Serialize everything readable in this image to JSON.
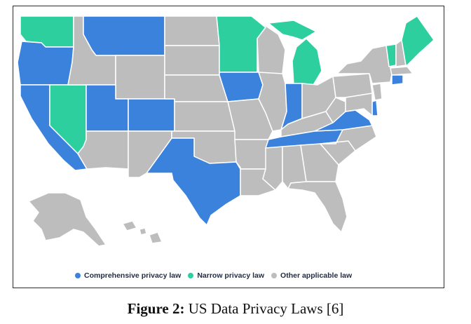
{
  "legend": {
    "items": [
      {
        "label": "Comprehensive privacy law",
        "color": "#3b82dc"
      },
      {
        "label": "Narrow privacy law",
        "color": "#2dcf9f"
      },
      {
        "label": "Other applicable law",
        "color": "#bdbdbd"
      }
    ]
  },
  "caption": {
    "label": "Figure 2:",
    "text": " US Data Privacy Laws [6]"
  },
  "colors": {
    "comprehensive": "#3b82dc",
    "narrow": "#2dcf9f",
    "other": "#bdbdbd",
    "border": "#ffffff"
  },
  "map": {
    "states": [
      {
        "name": "Washington",
        "category": "narrow"
      },
      {
        "name": "Oregon",
        "category": "comprehensive"
      },
      {
        "name": "California",
        "category": "comprehensive"
      },
      {
        "name": "Nevada",
        "category": "narrow"
      },
      {
        "name": "Idaho",
        "category": "other"
      },
      {
        "name": "Montana",
        "category": "comprehensive"
      },
      {
        "name": "Wyoming",
        "category": "other"
      },
      {
        "name": "Utah",
        "category": "comprehensive"
      },
      {
        "name": "Colorado",
        "category": "comprehensive"
      },
      {
        "name": "Arizona",
        "category": "other"
      },
      {
        "name": "New Mexico",
        "category": "other"
      },
      {
        "name": "North Dakota",
        "category": "other"
      },
      {
        "name": "South Dakota",
        "category": "other"
      },
      {
        "name": "Nebraska",
        "category": "other"
      },
      {
        "name": "Kansas",
        "category": "other"
      },
      {
        "name": "Oklahoma",
        "category": "other"
      },
      {
        "name": "Texas",
        "category": "comprehensive"
      },
      {
        "name": "Minnesota",
        "category": "narrow"
      },
      {
        "name": "Iowa",
        "category": "comprehensive"
      },
      {
        "name": "Missouri",
        "category": "other"
      },
      {
        "name": "Arkansas",
        "category": "other"
      },
      {
        "name": "Louisiana",
        "category": "other"
      },
      {
        "name": "Wisconsin",
        "category": "other"
      },
      {
        "name": "Illinois",
        "category": "other"
      },
      {
        "name": "Michigan",
        "category": "narrow"
      },
      {
        "name": "Indiana",
        "category": "comprehensive"
      },
      {
        "name": "Ohio",
        "category": "other"
      },
      {
        "name": "Kentucky",
        "category": "other"
      },
      {
        "name": "Tennessee",
        "category": "comprehensive"
      },
      {
        "name": "Mississippi",
        "category": "other"
      },
      {
        "name": "Alabama",
        "category": "other"
      },
      {
        "name": "Georgia",
        "category": "other"
      },
      {
        "name": "Florida",
        "category": "other"
      },
      {
        "name": "South Carolina",
        "category": "other"
      },
      {
        "name": "North Carolina",
        "category": "other"
      },
      {
        "name": "Virginia",
        "category": "comprehensive"
      },
      {
        "name": "West Virginia",
        "category": "other"
      },
      {
        "name": "Pennsylvania",
        "category": "other"
      },
      {
        "name": "New York",
        "category": "other"
      },
      {
        "name": "Vermont",
        "category": "narrow"
      },
      {
        "name": "New Hampshire",
        "category": "other"
      },
      {
        "name": "Maine",
        "category": "narrow"
      },
      {
        "name": "Massachusetts",
        "category": "other"
      },
      {
        "name": "Connecticut",
        "category": "comprehensive"
      },
      {
        "name": "New Jersey",
        "category": "other"
      },
      {
        "name": "Delaware",
        "category": "comprehensive"
      },
      {
        "name": "Maryland",
        "category": "other"
      },
      {
        "name": "Alaska",
        "category": "other"
      },
      {
        "name": "Hawaii",
        "category": "other"
      }
    ]
  }
}
